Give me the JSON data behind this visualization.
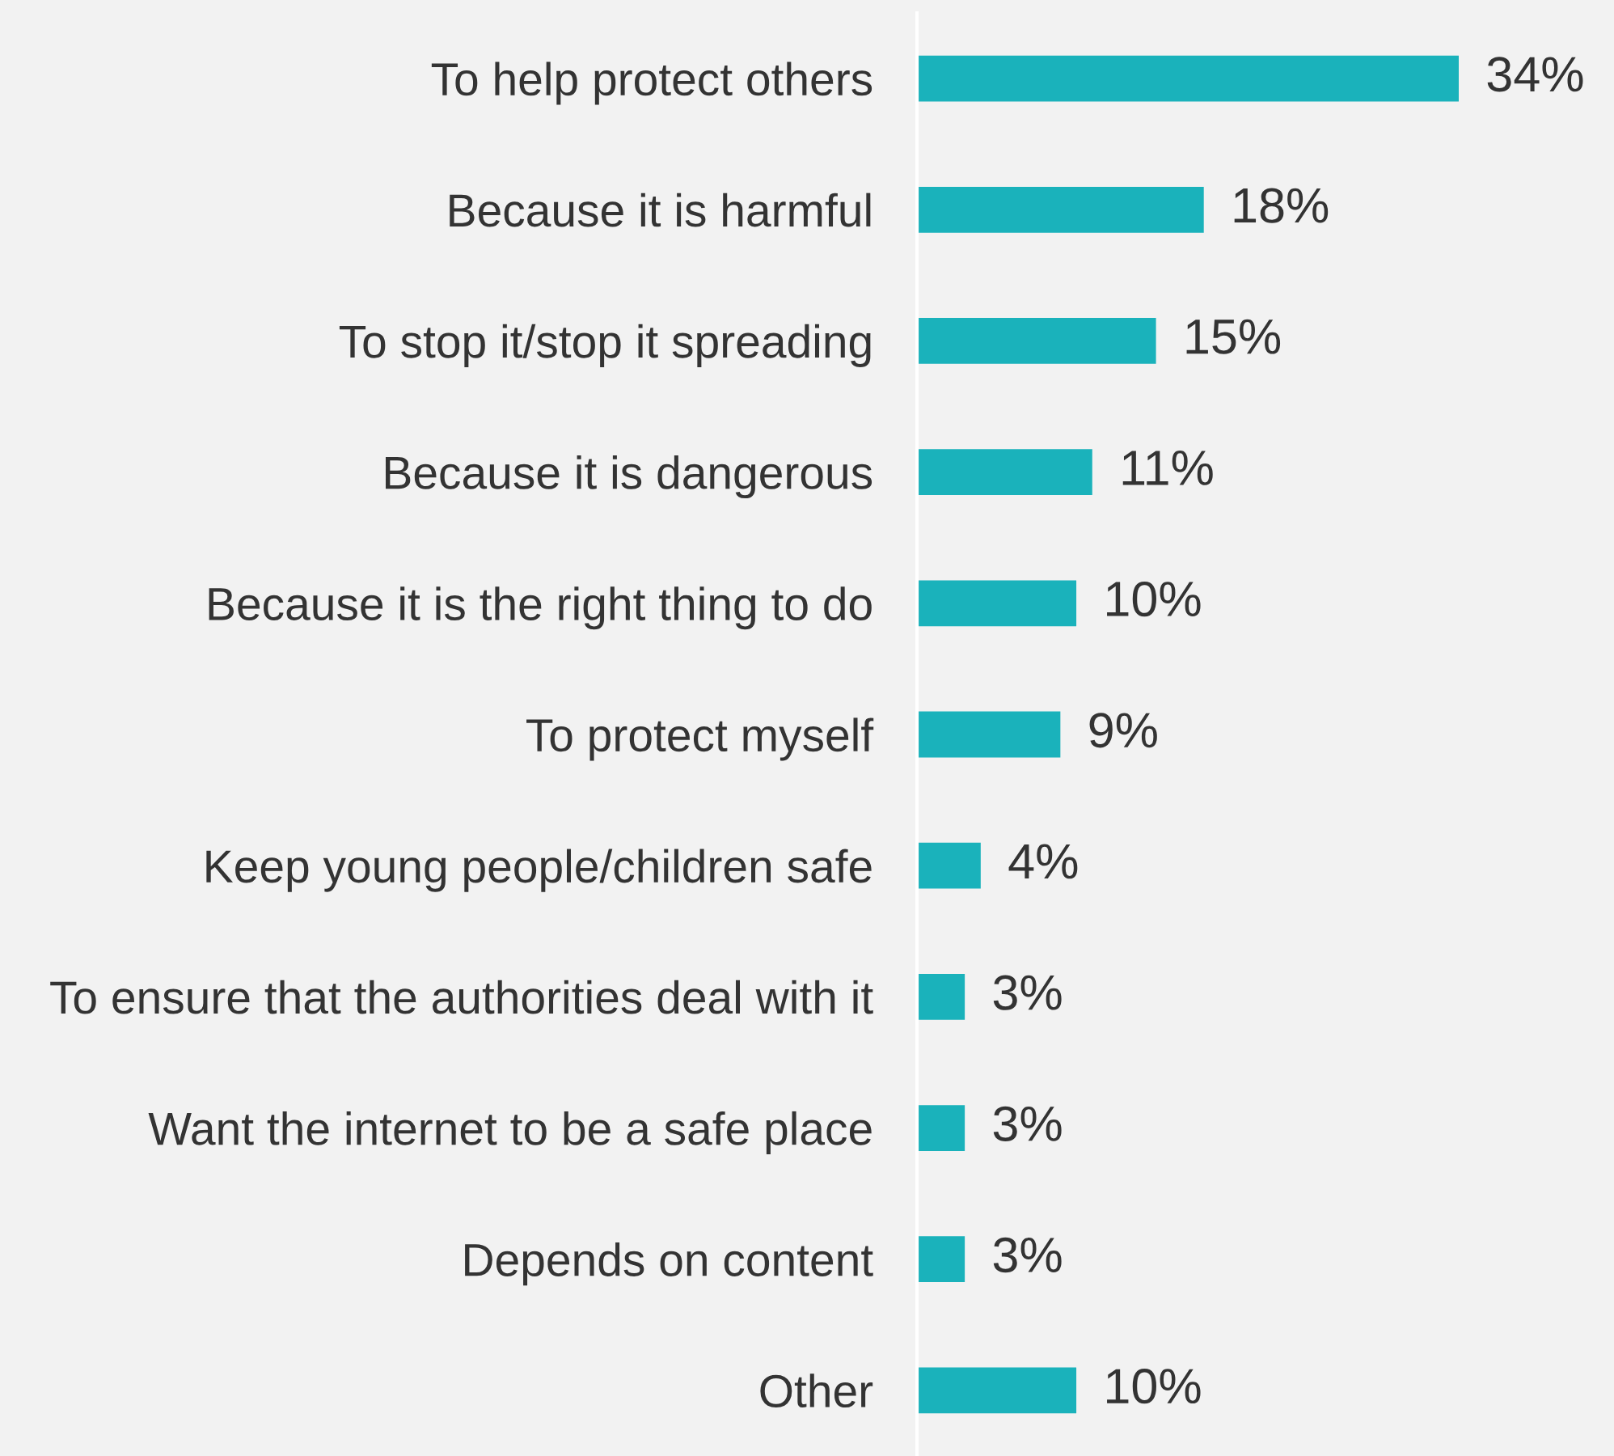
{
  "chart_data": {
    "type": "bar",
    "orientation": "horizontal",
    "categories": [
      "To help protect others",
      "Because it is harmful",
      "To stop it/stop it spreading",
      "Because it is dangerous",
      "Because it is the right thing to do",
      "To protect myself",
      "Keep young people/children safe",
      "To ensure that the authorities deal with it",
      "Want the internet to be a safe place",
      "Depends on content",
      "Other"
    ],
    "values": [
      34,
      18,
      15,
      11,
      10,
      9,
      4,
      3,
      3,
      3,
      10
    ],
    "color": "#1ab2bb",
    "value_labels": [
      "34%",
      "18%",
      "15%",
      "11%",
      "10%",
      "9%",
      "4%",
      "3%",
      "3%",
      "3%",
      "10%"
    ]
  }
}
